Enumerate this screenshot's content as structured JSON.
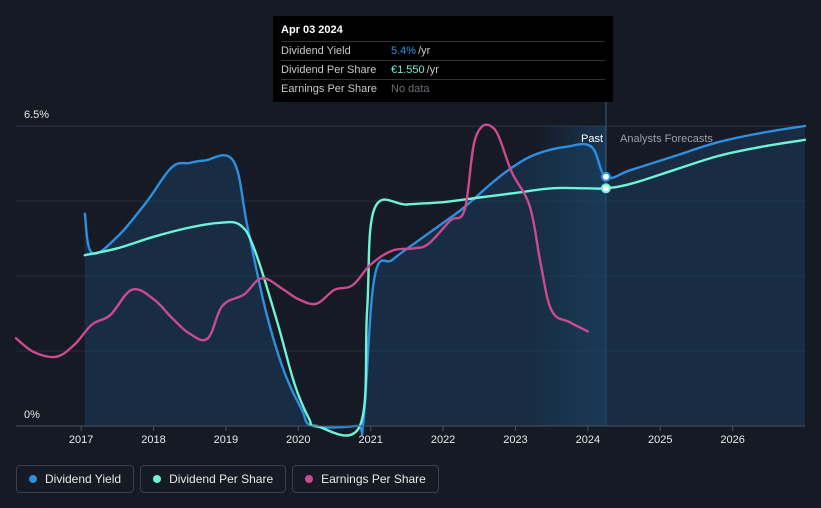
{
  "tooltip": {
    "date": "Apr 03 2024",
    "rows": [
      {
        "label": "Dividend Yield",
        "value": "5.4%",
        "suffix": "/yr",
        "color": "#2d8fe0"
      },
      {
        "label": "Dividend Per Share",
        "value": "€1.550",
        "suffix": "/yr",
        "color": "#6ff2d6"
      },
      {
        "label": "Earnings Per Share",
        "value": "No data",
        "suffix": "",
        "color": "#6b6f78"
      }
    ]
  },
  "regions": {
    "past": "Past",
    "forecast": "Analysts Forecasts"
  },
  "legend": [
    {
      "label": "Dividend Yield",
      "color": "#2d8fe0"
    },
    {
      "label": "Dividend Per Share",
      "color": "#6ff2d6"
    },
    {
      "label": "Earnings Per Share",
      "color": "#c94b8e"
    }
  ],
  "chart_data": {
    "type": "line",
    "title": "",
    "ylim": [
      0,
      6.5
    ],
    "y_tick_labels": [
      "6.5%",
      "0%"
    ],
    "x_ticks": [
      2017,
      2018,
      2019,
      2020,
      2021,
      2022,
      2023,
      2024,
      2025,
      2026
    ],
    "xlim": [
      2016.1,
      2027.0
    ],
    "forecast_start": 2024.25,
    "shade_start": 2023.25,
    "series": [
      {
        "name": "Dividend Yield",
        "color": "#2d8fe0",
        "fill": true,
        "points": [
          [
            2017.05,
            4.6
          ],
          [
            2017.15,
            3.75
          ],
          [
            2017.5,
            4.1
          ],
          [
            2017.9,
            4.85
          ],
          [
            2018.25,
            5.6
          ],
          [
            2018.5,
            5.7
          ],
          [
            2018.7,
            5.75
          ],
          [
            2019.1,
            5.75
          ],
          [
            2019.3,
            4.3
          ],
          [
            2019.55,
            2.5
          ],
          [
            2019.8,
            1.2
          ],
          [
            2020.05,
            0.35
          ],
          [
            2020.2,
            0.0
          ],
          [
            2020.8,
            0.0
          ],
          [
            2020.9,
            0.1
          ],
          [
            2021.05,
            3.2
          ],
          [
            2021.3,
            3.6
          ],
          [
            2021.6,
            3.95
          ],
          [
            2022.0,
            4.4
          ],
          [
            2022.3,
            4.75
          ],
          [
            2022.7,
            5.3
          ],
          [
            2023.0,
            5.65
          ],
          [
            2023.3,
            5.9
          ],
          [
            2023.7,
            6.05
          ],
          [
            2024.05,
            6.05
          ],
          [
            2024.25,
            5.4
          ],
          [
            2024.6,
            5.55
          ],
          [
            2025.2,
            5.85
          ],
          [
            2025.8,
            6.15
          ],
          [
            2026.4,
            6.35
          ],
          [
            2027.0,
            6.5
          ]
        ]
      },
      {
        "name": "Dividend Per Share",
        "color": "#6ff2d6",
        "fill": false,
        "points": [
          [
            2017.05,
            3.7
          ],
          [
            2017.5,
            3.85
          ],
          [
            2018.0,
            4.1
          ],
          [
            2018.5,
            4.3
          ],
          [
            2018.9,
            4.4
          ],
          [
            2019.2,
            4.35
          ],
          [
            2019.4,
            3.8
          ],
          [
            2019.7,
            2.3
          ],
          [
            2019.95,
            0.9
          ],
          [
            2020.15,
            0.15
          ],
          [
            2020.25,
            0.0
          ],
          [
            2020.85,
            0.0
          ],
          [
            2020.95,
            2.5
          ],
          [
            2021.05,
            4.7
          ],
          [
            2021.5,
            4.8
          ],
          [
            2022.0,
            4.85
          ],
          [
            2022.5,
            4.95
          ],
          [
            2023.0,
            5.05
          ],
          [
            2023.5,
            5.15
          ],
          [
            2024.0,
            5.15
          ],
          [
            2024.25,
            5.15
          ],
          [
            2024.6,
            5.25
          ],
          [
            2025.2,
            5.55
          ],
          [
            2025.8,
            5.85
          ],
          [
            2026.4,
            6.05
          ],
          [
            2027.0,
            6.2
          ]
        ]
      },
      {
        "name": "Earnings Per Share",
        "color": "#c94b8e",
        "fill": false,
        "points": [
          [
            2016.1,
            1.9
          ],
          [
            2016.35,
            1.6
          ],
          [
            2016.65,
            1.5
          ],
          [
            2016.9,
            1.75
          ],
          [
            2017.15,
            2.2
          ],
          [
            2017.4,
            2.4
          ],
          [
            2017.7,
            2.95
          ],
          [
            2018.0,
            2.75
          ],
          [
            2018.25,
            2.35
          ],
          [
            2018.5,
            2.0
          ],
          [
            2018.75,
            1.9
          ],
          [
            2018.95,
            2.6
          ],
          [
            2019.25,
            2.85
          ],
          [
            2019.5,
            3.2
          ],
          [
            2019.8,
            2.95
          ],
          [
            2020.0,
            2.75
          ],
          [
            2020.25,
            2.65
          ],
          [
            2020.5,
            2.95
          ],
          [
            2020.75,
            3.05
          ],
          [
            2021.0,
            3.5
          ],
          [
            2021.3,
            3.8
          ],
          [
            2021.6,
            3.85
          ],
          [
            2021.8,
            3.95
          ],
          [
            2022.1,
            4.45
          ],
          [
            2022.3,
            4.7
          ],
          [
            2022.45,
            6.25
          ],
          [
            2022.7,
            6.45
          ],
          [
            2022.95,
            5.5
          ],
          [
            2023.2,
            4.75
          ],
          [
            2023.35,
            3.5
          ],
          [
            2023.5,
            2.5
          ],
          [
            2023.75,
            2.25
          ],
          [
            2024.0,
            2.05
          ]
        ]
      }
    ],
    "markers": [
      {
        "series": "Dividend Yield",
        "x": 2024.25,
        "y": 5.4
      },
      {
        "series": "Dividend Per Share",
        "x": 2024.25,
        "y": 5.15
      }
    ]
  }
}
